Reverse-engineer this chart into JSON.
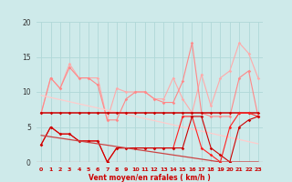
{
  "x": [
    0,
    1,
    2,
    3,
    4,
    5,
    6,
    7,
    8,
    9,
    10,
    11,
    12,
    13,
    14,
    15,
    16,
    17,
    18,
    19,
    20,
    21,
    22,
    23
  ],
  "line_rafales_high": [
    7,
    12,
    10.5,
    14,
    12,
    12,
    12,
    6,
    10.5,
    10,
    10,
    10,
    9,
    9,
    12,
    9,
    7,
    12.5,
    8,
    12,
    13,
    17,
    15.5,
    12
  ],
  "line_rafales_low": [
    7,
    12,
    10.5,
    13.5,
    12,
    12,
    11,
    6,
    6,
    9,
    10,
    10,
    9,
    8.5,
    8.5,
    11.5,
    17,
    7,
    6.5,
    6.5,
    6.5,
    12,
    13,
    6.5
  ],
  "line_moy_high": [
    7,
    7,
    7,
    7,
    7,
    7,
    7,
    7,
    7,
    7,
    7,
    7,
    7,
    7,
    7,
    7,
    7,
    7,
    7,
    7,
    7,
    7,
    7,
    7
  ],
  "line_moy_actual": [
    2.5,
    5,
    4,
    4,
    3,
    3,
    3,
    0,
    2,
    2,
    2,
    2,
    2,
    2,
    2,
    6.5,
    6.5,
    2,
    1,
    0,
    5,
    7,
    7,
    6.5
  ],
  "line_moy_low": [
    2.5,
    5,
    4,
    4,
    3,
    3,
    3,
    0,
    2,
    2,
    2,
    2,
    2,
    2,
    2,
    2,
    6.5,
    6.5,
    2,
    1,
    0,
    5,
    6,
    6.5
  ],
  "trend_rafales": [
    9.5,
    9.2,
    8.9,
    8.6,
    8.3,
    8.0,
    7.7,
    7.4,
    7.1,
    6.8,
    6.5,
    6.2,
    5.9,
    5.6,
    5.3,
    5.0,
    4.7,
    4.4,
    4.1,
    3.8,
    3.5,
    3.2,
    2.9,
    2.6
  ],
  "trend_moy": [
    3.8,
    3.6,
    3.4,
    3.2,
    3.0,
    2.8,
    2.6,
    2.4,
    2.2,
    2.0,
    1.8,
    1.6,
    1.4,
    1.2,
    1.0,
    0.8,
    0.6,
    0.4,
    0.2,
    0.0,
    0.0,
    0.0,
    0.0,
    0.0
  ],
  "bg_color": "#ceeaea",
  "grid_color": "#b0d8d8",
  "color_light_pink": "#ffaaaa",
  "color_medium_pink": "#ff8888",
  "color_dark_red": "#cc0000",
  "color_red": "#ff2222",
  "color_trend_light": "#ffcccc",
  "color_trend_dark": "#cc4444",
  "xlabel": "Vent moyen/en rafales ( km/h )",
  "ylim": [
    0,
    20
  ],
  "xlim": [
    -0.5,
    23.5
  ],
  "yticks": [
    0,
    5,
    10,
    15,
    20
  ],
  "xticks": [
    0,
    1,
    2,
    3,
    4,
    5,
    6,
    7,
    8,
    9,
    10,
    11,
    12,
    13,
    14,
    15,
    16,
    17,
    18,
    19,
    20,
    21,
    22,
    23
  ]
}
